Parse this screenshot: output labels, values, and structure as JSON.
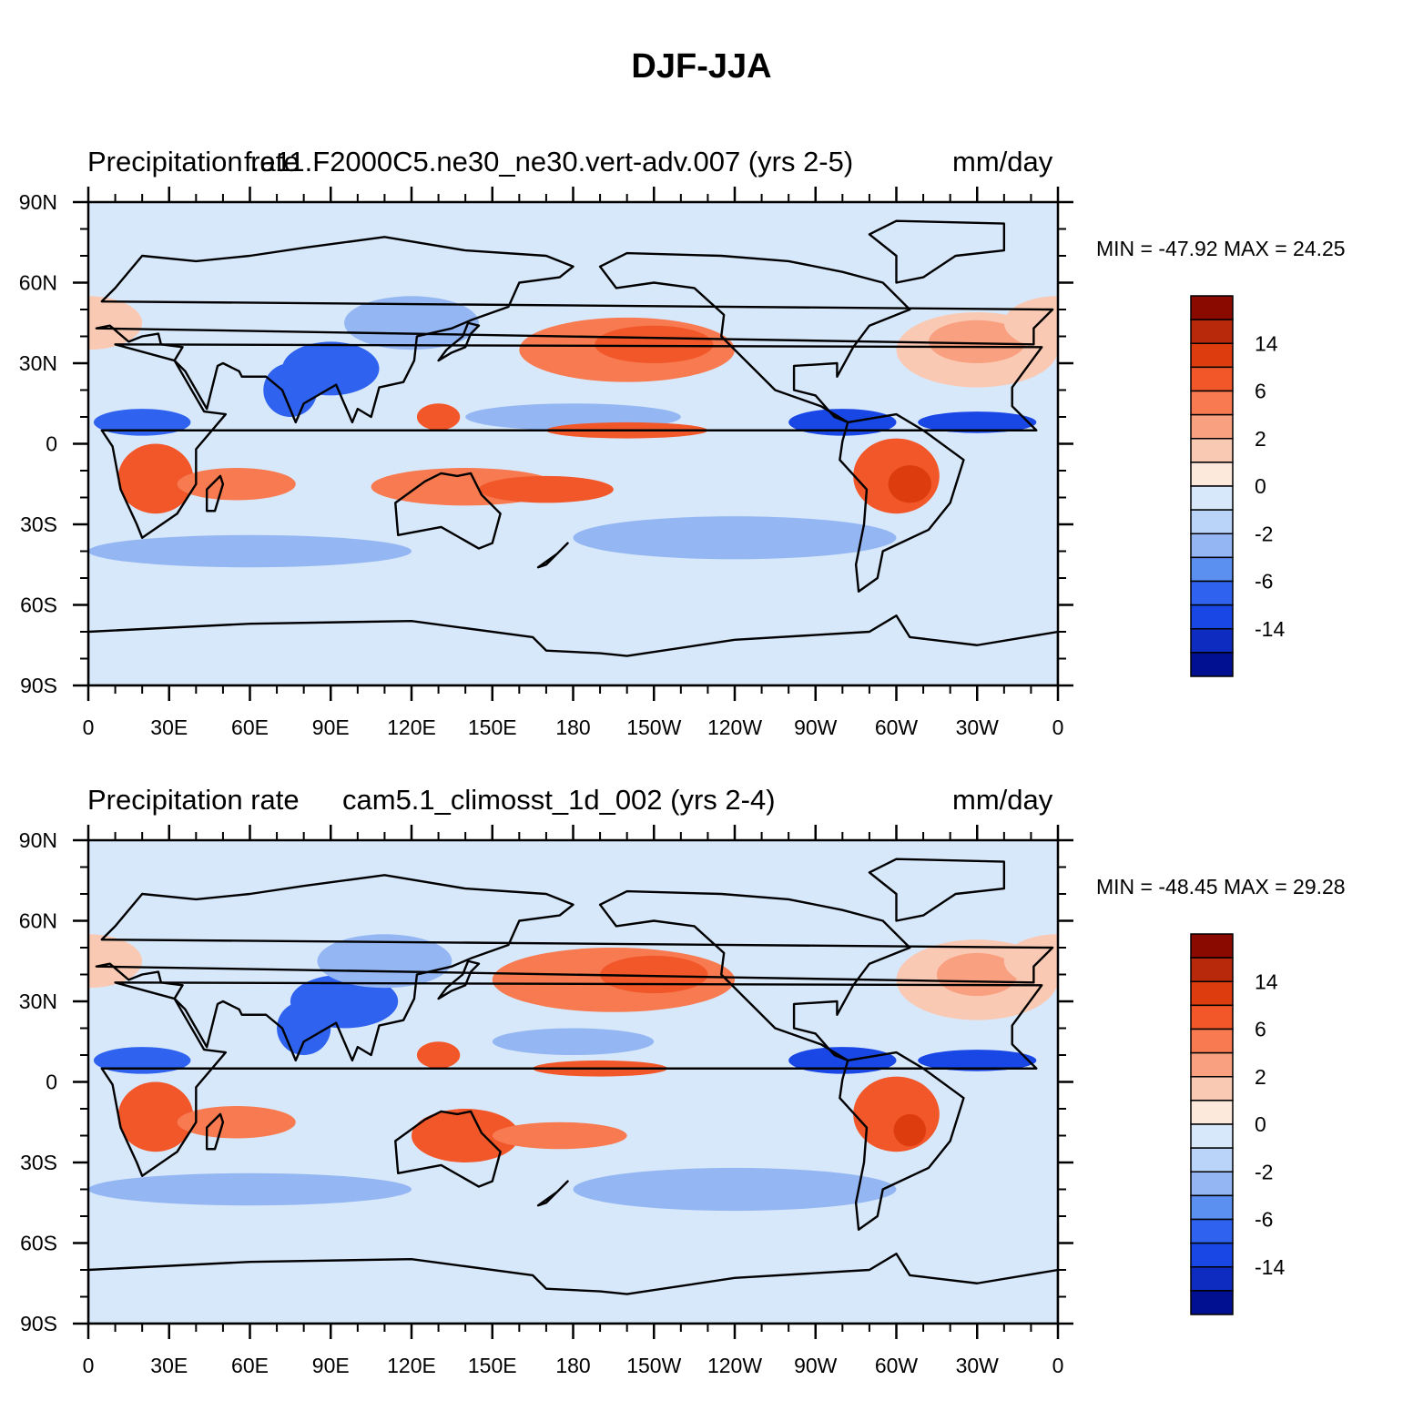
{
  "title": "DJF-JJA",
  "chart_data": [
    {
      "type": "heatmap",
      "title_left": "Precipitation rate",
      "title_center": "f.e11.F2000C5.ne30_ne30.vert-adv.007 (yrs 2-5)",
      "title_right": "mm/day",
      "stats": "MIN = -47.92 MAX =  24.25",
      "xticks": [
        "0",
        "30E",
        "60E",
        "90E",
        "120E",
        "150E",
        "180",
        "150W",
        "120W",
        "90W",
        "60W",
        "30W",
        "0"
      ],
      "yticks": [
        "90N",
        "60N",
        "30N",
        "0",
        "30S",
        "60S",
        "90S"
      ],
      "xlim": [
        0,
        360
      ],
      "ylim": [
        -90,
        90
      ],
      "colorbar": {
        "colors": [
          "#8a0a00",
          "#b8280a",
          "#dd3c0e",
          "#f2572a",
          "#f77a50",
          "#f8a07f",
          "#fac9b4",
          "#fde9dc",
          "#d8e8fb",
          "#bad3f8",
          "#94b7f3",
          "#5b8ff0",
          "#2f63ef",
          "#1947e6",
          "#0f2cc0",
          "#001090"
        ],
        "labels": [
          "14",
          "6",
          "2",
          "0",
          "-2",
          "-6",
          "-14"
        ]
      }
    },
    {
      "type": "heatmap",
      "title_left": "Precipitation rate",
      "title_center": "cam5.1_climosst_1d_002 (yrs 2-4)",
      "title_right": "mm/day",
      "stats": "MIN = -48.45 MAX =  29.28",
      "xticks": [
        "0",
        "30E",
        "60E",
        "90E",
        "120E",
        "150E",
        "180",
        "150W",
        "120W",
        "90W",
        "60W",
        "30W",
        "0"
      ],
      "yticks": [
        "90N",
        "60N",
        "30N",
        "0",
        "30S",
        "60S",
        "90S"
      ],
      "xlim": [
        0,
        360
      ],
      "ylim": [
        -90,
        90
      ],
      "colorbar": {
        "colors": [
          "#8a0a00",
          "#b8280a",
          "#dd3c0e",
          "#f2572a",
          "#f77a50",
          "#f8a07f",
          "#fac9b4",
          "#fde9dc",
          "#d8e8fb",
          "#bad3f8",
          "#94b7f3",
          "#5b8ff0",
          "#2f63ef",
          "#1947e6",
          "#0f2cc0",
          "#001090"
        ],
        "labels": [
          "14",
          "6",
          "2",
          "0",
          "-2",
          "-6",
          "-14"
        ]
      }
    }
  ]
}
